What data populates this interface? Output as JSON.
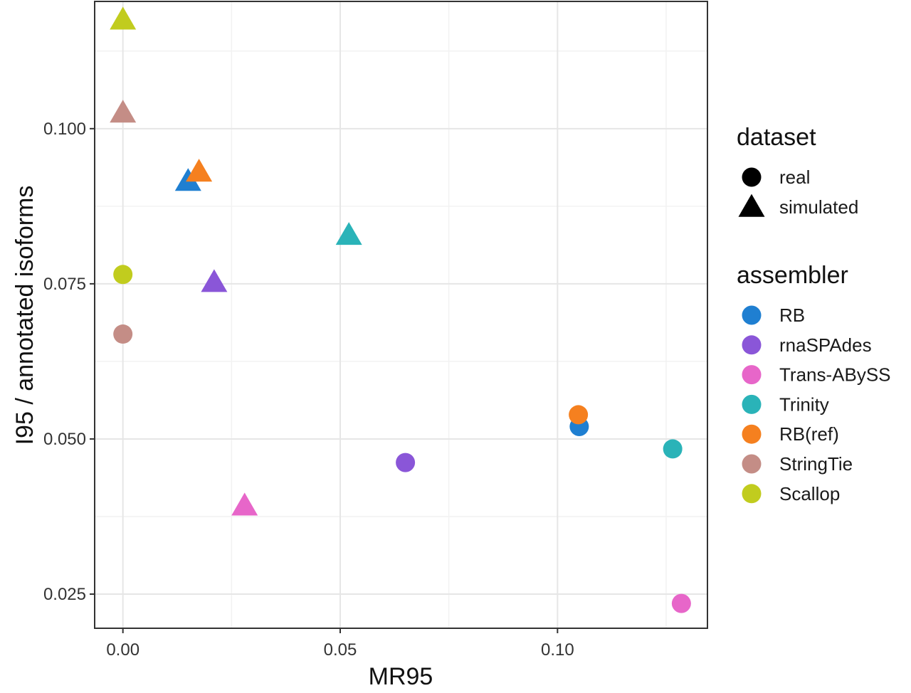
{
  "chart_data": {
    "type": "scatter",
    "title": "",
    "xlabel": "MR95",
    "ylabel": "I95 / annotated isoforms",
    "xlim": [
      -0.0065,
      0.1345
    ],
    "ylim": [
      0.0195,
      0.1205
    ],
    "x_ticks": [
      0.0,
      0.05,
      0.1
    ],
    "x_tick_labels": [
      "0.00",
      "0.05",
      "0.10"
    ],
    "y_ticks": [
      0.025,
      0.05,
      0.075,
      0.1
    ],
    "y_tick_labels": [
      "0.025",
      "0.050",
      "0.075",
      "0.100"
    ],
    "grid": true,
    "legend_position": "right",
    "legends": {
      "dataset": {
        "title": "dataset",
        "items": [
          {
            "label": "real",
            "shape": "circle"
          },
          {
            "label": "simulated",
            "shape": "triangle"
          }
        ]
      },
      "assembler": {
        "title": "assembler",
        "items": [
          {
            "label": "RB",
            "color": "#1f7fd1"
          },
          {
            "label": "rnaSPAdes",
            "color": "#8a56d8"
          },
          {
            "label": "Trans-ABySS",
            "color": "#e766c9"
          },
          {
            "label": "Trinity",
            "color": "#2ab3b8"
          },
          {
            "label": "RB(ref)",
            "color": "#f5801f"
          },
          {
            "label": "StringTie",
            "color": "#c48d86"
          },
          {
            "label": "Scallop",
            "color": "#c1cc1e"
          }
        ]
      }
    },
    "points": [
      {
        "assembler": "Scallop",
        "dataset": "simulated",
        "x": 0.0,
        "y": 0.1172
      },
      {
        "assembler": "StringTie",
        "dataset": "simulated",
        "x": 0.0,
        "y": 0.1022
      },
      {
        "assembler": "RB",
        "dataset": "simulated",
        "x": 0.015,
        "y": 0.0912
      },
      {
        "assembler": "RB(ref)",
        "dataset": "simulated",
        "x": 0.0175,
        "y": 0.0927
      },
      {
        "assembler": "Trinity",
        "dataset": "simulated",
        "x": 0.052,
        "y": 0.0825
      },
      {
        "assembler": "rnaSPAdes",
        "dataset": "simulated",
        "x": 0.021,
        "y": 0.0749
      },
      {
        "assembler": "Trans-ABySS",
        "dataset": "simulated",
        "x": 0.028,
        "y": 0.0389
      },
      {
        "assembler": "Scallop",
        "dataset": "real",
        "x": 0.0,
        "y": 0.0765
      },
      {
        "assembler": "StringTie",
        "dataset": "real",
        "x": 0.0,
        "y": 0.0669
      },
      {
        "assembler": "rnaSPAdes",
        "dataset": "real",
        "x": 0.065,
        "y": 0.0462
      },
      {
        "assembler": "RB",
        "dataset": "real",
        "x": 0.105,
        "y": 0.052
      },
      {
        "assembler": "RB(ref)",
        "dataset": "real",
        "x": 0.1048,
        "y": 0.0539
      },
      {
        "assembler": "Trinity",
        "dataset": "real",
        "x": 0.1265,
        "y": 0.0484
      },
      {
        "assembler": "Trans-ABySS",
        "dataset": "real",
        "x": 0.1285,
        "y": 0.0235
      }
    ]
  }
}
